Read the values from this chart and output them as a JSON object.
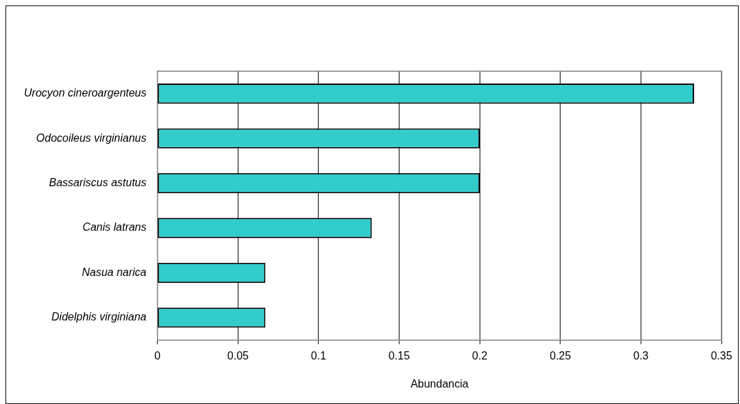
{
  "chart_data": {
    "type": "bar",
    "orientation": "horizontal",
    "categories": [
      "Urocyon cineroargenteus",
      "Odocoileus virginianus",
      "Bassariscus astutus",
      "Canis latrans",
      "Nasua narica",
      "Didelphis virginiana"
    ],
    "values": [
      0.333,
      0.2,
      0.2,
      0.133,
      0.067,
      0.067
    ],
    "color": "#33cccc",
    "xlabel": "Abundancia",
    "xlim": [
      0,
      0.35
    ],
    "xticks": [
      0,
      0.05,
      0.1,
      0.15,
      0.2,
      0.25,
      0.3,
      0.35
    ],
    "grid": "x"
  }
}
